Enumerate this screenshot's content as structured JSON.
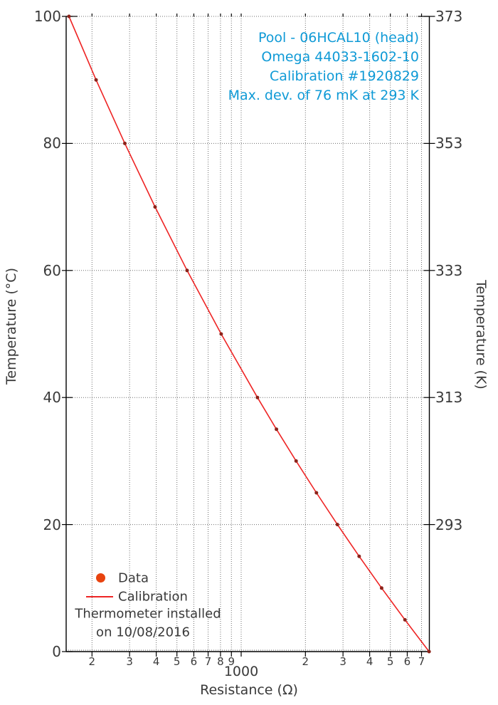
{
  "colors": {
    "background": "#ffffff",
    "frame": "#000000",
    "grid": "#6f6f6f",
    "text": "#3a3a3a",
    "annotation_blue": "#0f9ad6",
    "calibration_line": "#ee2424",
    "data_marker": "#8b231a",
    "legend_marker": "#e8430f"
  },
  "annotation": {
    "lines": [
      "Pool - 06HCAL10 (head)",
      "Omega 44033-1602-10",
      "Calibration #1920829",
      "Max. dev. of 76 mK at 293 K"
    ]
  },
  "legend": {
    "data_label": "Data",
    "calibration_label": "Calibration",
    "note_line1": "Thermometer installed",
    "note_line2": "on 10/08/2016"
  },
  "chart_data": {
    "type": "line",
    "title": "",
    "xlabel": "Resistance (Ω)",
    "ylabel_left": "Temperature (°C)",
    "ylabel_right": "Temperature (K)",
    "x_scale": "log",
    "xlim": [
      151,
      7650
    ],
    "ylim_c": [
      0,
      100
    ],
    "grid": true,
    "legend_position": "bottom-left",
    "annotation_position": "top-right",
    "y_ticks_c": [
      0,
      20,
      40,
      60,
      80,
      100
    ],
    "y_ticks_k": [
      {
        "k": "373",
        "c": 100
      },
      {
        "k": "353",
        "c": 80
      },
      {
        "k": "333",
        "c": 60
      },
      {
        "k": "313",
        "c": 40
      },
      {
        "k": "293",
        "c": 20
      }
    ],
    "x_ticks": [
      {
        "r": 200,
        "label": "2",
        "major": false
      },
      {
        "r": 300,
        "label": "3",
        "major": false
      },
      {
        "r": 400,
        "label": "4",
        "major": false
      },
      {
        "r": 500,
        "label": "5",
        "major": false
      },
      {
        "r": 600,
        "label": "6",
        "major": false
      },
      {
        "r": 700,
        "label": "7",
        "major": false
      },
      {
        "r": 800,
        "label": "8",
        "major": false
      },
      {
        "r": 900,
        "label": "9",
        "major": false
      },
      {
        "r": 1000,
        "label": "1000",
        "major": true
      },
      {
        "r": 2000,
        "label": "2",
        "major": false
      },
      {
        "r": 3000,
        "label": "3",
        "major": false
      },
      {
        "r": 4000,
        "label": "4",
        "major": false
      },
      {
        "r": 5000,
        "label": "5",
        "major": false
      },
      {
        "r": 6000,
        "label": "6",
        "major": false
      },
      {
        "r": 7000,
        "label": "7",
        "major": false
      }
    ],
    "series": [
      {
        "name": "Data",
        "type": "scatter"
      },
      {
        "name": "Calibration",
        "type": "line"
      }
    ],
    "points": {
      "resistance_ohm": [
        156,
        209,
        285,
        395,
        558,
        806,
        1192,
        1463,
        1809,
        2252,
        2824,
        3571,
        4551,
        5853,
        7594
      ],
      "temperature_c": [
        100,
        90,
        80,
        70,
        60,
        50,
        40,
        35,
        30,
        25,
        20,
        15,
        10,
        5,
        0
      ],
      "temperature_k": [
        373,
        363,
        353,
        343,
        333,
        323,
        313,
        308,
        303,
        298,
        293,
        288,
        283,
        278,
        273
      ]
    }
  }
}
